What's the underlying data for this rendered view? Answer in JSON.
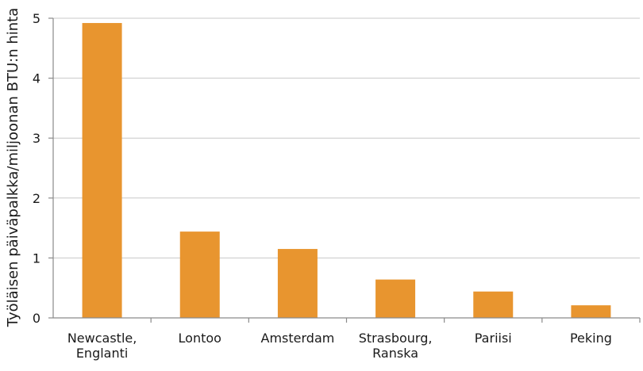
{
  "chart_data": {
    "type": "bar",
    "categories": [
      [
        "Newcastle,",
        "Englanti"
      ],
      [
        "Lontoo"
      ],
      [
        "Amsterdam"
      ],
      [
        "Strasbourg,",
        "Ranska"
      ],
      [
        "Pariisi"
      ],
      [
        "Peking"
      ]
    ],
    "values": [
      4.92,
      1.44,
      1.15,
      0.64,
      0.44,
      0.21
    ],
    "ylabel": "Työläisen päiväpalkka/miljoonan BTU:n hinta",
    "ylim": [
      0,
      5
    ],
    "yticks": [
      "0",
      "1",
      "2",
      "3",
      "4",
      "5"
    ],
    "bar_color": "#e8952f",
    "grid": true
  }
}
